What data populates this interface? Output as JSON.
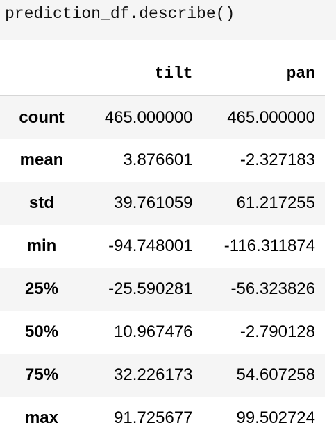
{
  "code": {
    "line": "prediction_df.describe()"
  },
  "table": {
    "columns": [
      "",
      "tilt",
      "pan"
    ],
    "rows": [
      {
        "label": "count",
        "tilt": "465.000000",
        "pan": "465.000000"
      },
      {
        "label": "mean",
        "tilt": "3.876601",
        "pan": "-2.327183"
      },
      {
        "label": "std",
        "tilt": "39.761059",
        "pan": "61.217255"
      },
      {
        "label": "min",
        "tilt": "-94.748001",
        "pan": "-116.311874"
      },
      {
        "label": "25%",
        "tilt": "-25.590281",
        "pan": "-56.323826"
      },
      {
        "label": "50%",
        "tilt": "10.967476",
        "pan": "-2.790128"
      },
      {
        "label": "75%",
        "tilt": "32.226173",
        "pan": "54.607258"
      },
      {
        "label": "max",
        "tilt": "91.725677",
        "pan": "99.502724"
      }
    ]
  }
}
